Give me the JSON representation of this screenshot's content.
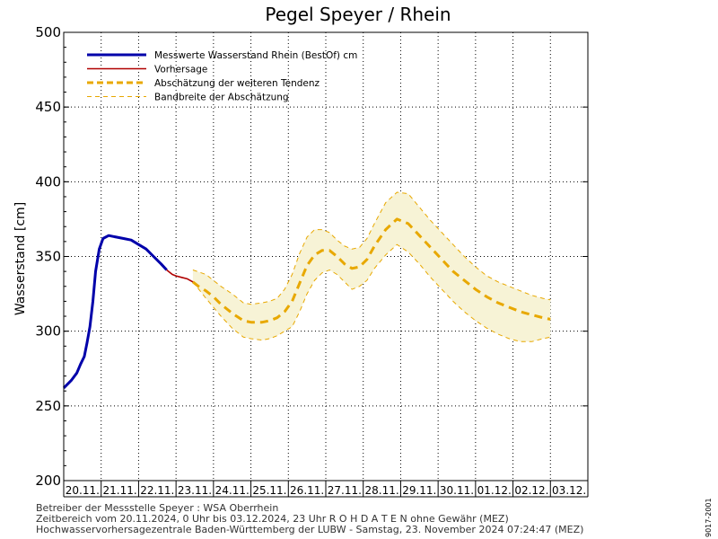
{
  "chart_data": {
    "type": "line",
    "title": "Pegel Speyer / Rhein",
    "ylabel": "Wasserstand [cm]",
    "ylim": [
      200,
      500
    ],
    "yticks": [
      200,
      250,
      300,
      350,
      400,
      450,
      500
    ],
    "grid": true,
    "legend_position": "top-left",
    "categories": [
      "20.11.",
      "21.11.",
      "22.11.",
      "23.11.",
      "24.11.",
      "25.11.",
      "26.11.",
      "27.11.",
      "28.11.",
      "29.11.",
      "30.11.",
      "01.12.",
      "02.12.",
      "03.12."
    ],
    "series": [
      {
        "name": "Messwerte Wasserstand Rhein (BestOf)   cm",
        "style": "measured",
        "color": "#0000aa",
        "x": [
          0.0,
          0.2,
          0.35,
          0.45,
          0.55,
          0.62,
          0.7,
          0.78,
          0.85,
          0.95,
          1.05,
          1.2,
          1.4,
          1.6,
          1.8,
          2.0,
          2.2,
          2.4,
          2.6,
          2.75
        ],
        "values": [
          262,
          267,
          272,
          278,
          283,
          292,
          303,
          320,
          340,
          355,
          362,
          364,
          363,
          362,
          361,
          358,
          355,
          350,
          345,
          341
        ]
      },
      {
        "name": "Vorhersage",
        "style": "forecast",
        "color": "#b00000",
        "x": [
          2.75,
          2.9,
          3.0,
          3.15,
          3.3,
          3.45
        ],
        "values": [
          341,
          338,
          337,
          336,
          335,
          333
        ]
      },
      {
        "name": "Abschätzung der weiteren Tendenz",
        "style": "trend",
        "color": "#e8a800",
        "x": [
          3.45,
          3.6,
          3.8,
          4.0,
          4.2,
          4.5,
          4.8,
          5.0,
          5.3,
          5.5,
          5.7,
          5.9,
          6.1,
          6.3,
          6.5,
          6.7,
          6.9,
          7.1,
          7.3,
          7.5,
          7.7,
          7.9,
          8.1,
          8.3,
          8.6,
          8.9,
          9.2,
          9.5,
          9.8,
          10.1,
          10.4,
          10.7,
          11.0,
          11.3,
          11.6,
          11.9,
          12.2,
          12.5,
          12.8,
          13.0
        ],
        "values": [
          333,
          330,
          327,
          323,
          318,
          312,
          307,
          306,
          306,
          307,
          309,
          313,
          320,
          332,
          344,
          351,
          354,
          354,
          350,
          345,
          342,
          343,
          348,
          357,
          368,
          375,
          372,
          364,
          356,
          348,
          340,
          334,
          328,
          323,
          319,
          316,
          313,
          311,
          309,
          308
        ]
      },
      {
        "name": "Bandbreite der Abschätzung",
        "style": "band",
        "color": "#e8a800",
        "x": [
          3.45,
          3.8,
          4.2,
          4.5,
          4.8,
          5.0,
          5.3,
          5.5,
          5.7,
          5.9,
          6.1,
          6.3,
          6.5,
          6.7,
          6.9,
          7.1,
          7.3,
          7.5,
          7.7,
          7.9,
          8.1,
          8.3,
          8.6,
          8.9,
          9.2,
          9.5,
          9.8,
          10.1,
          10.4,
          10.7,
          11.0,
          11.3,
          11.6,
          11.9,
          12.2,
          12.5,
          12.8,
          13.0
        ],
        "upper": [
          341,
          338,
          330,
          325,
          319,
          318,
          319,
          320,
          322,
          328,
          338,
          352,
          363,
          368,
          368,
          366,
          361,
          357,
          355,
          356,
          362,
          372,
          386,
          393,
          392,
          383,
          374,
          366,
          358,
          350,
          343,
          337,
          333,
          330,
          327,
          324,
          322,
          321
        ],
        "lower": [
          333,
          322,
          310,
          302,
          296,
          295,
          294,
          295,
          297,
          300,
          303,
          313,
          325,
          334,
          339,
          341,
          338,
          333,
          328,
          330,
          334,
          342,
          351,
          358,
          353,
          345,
          336,
          328,
          320,
          313,
          307,
          302,
          298,
          295,
          293,
          293,
          295,
          296
        ]
      }
    ]
  },
  "footer": {
    "line1": "Betreiber der Messstelle Speyer : WSA Oberrhein",
    "line2": "Zeitbereich vom 20.11.2024, 0 Uhr bis 03.12.2024, 23 Uhr   R O H D A T E N ohne Gewähr (MEZ)",
    "line3": "Hochwasservorhersagezentrale Baden-Württemberg der LUBW - Samstag, 23. November 2024 07:24:47 (MEZ)"
  },
  "side_label": "9017-2001"
}
